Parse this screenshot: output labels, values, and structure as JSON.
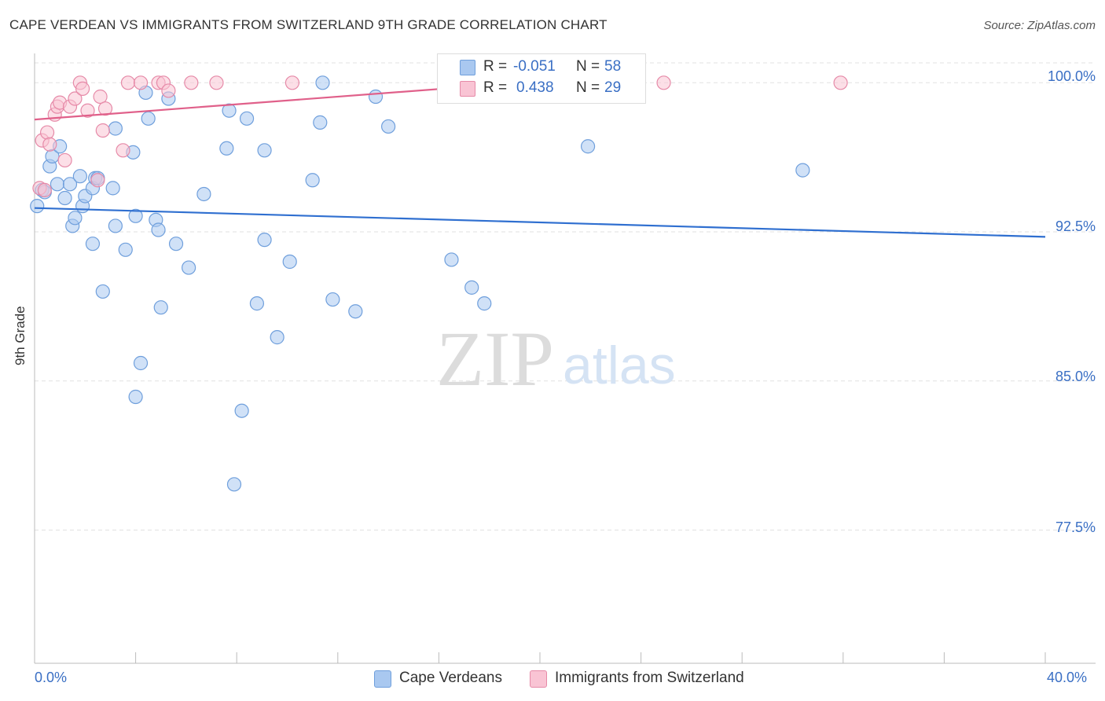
{
  "title": "CAPE VERDEAN VS IMMIGRANTS FROM SWITZERLAND 9TH GRADE CORRELATION CHART",
  "source": "Source: ZipAtlas.com",
  "watermark": {
    "zip": "ZIP",
    "atlas": "atlas"
  },
  "legend": {
    "rows": [
      {
        "r_label": "R =",
        "r_value": "-0.051",
        "n_label": "N =",
        "n_value": "58",
        "color": "#a9c8f0",
        "border": "#6f9fdc"
      },
      {
        "r_label": "R =",
        "r_value": "0.438",
        "n_label": "N =",
        "n_value": "29",
        "color": "#f9c4d4",
        "border": "#e68aa8"
      }
    ]
  },
  "bottom_legend": {
    "items": [
      {
        "label": "Cape Verdeans",
        "color": "#a9c8f0",
        "border": "#6f9fdc"
      },
      {
        "label": "Immigrants from Switzerland",
        "color": "#f9c4d4",
        "border": "#e68aa8"
      }
    ]
  },
  "y_tick_labels": [
    "100.0%",
    "92.5%",
    "85.0%",
    "77.5%"
  ],
  "x_tick_labels": [
    "0.0%",
    "40.0%"
  ],
  "chart_data": {
    "type": "scatter",
    "title": "CAPE VERDEAN VS IMMIGRANTS FROM SWITZERLAND 9TH GRADE CORRELATION CHART",
    "xlabel": "",
    "ylabel": "9th Grade",
    "xlim": [
      0,
      40
    ],
    "ylim": [
      70.8,
      101.0
    ],
    "y_ticks": [
      100.0,
      92.5,
      85.0,
      77.5
    ],
    "x_ticks": [
      0.0,
      40.0
    ],
    "grid": true,
    "series": [
      {
        "name": "Cape Verdeans",
        "color": "#6f9fdc",
        "fill": "#a9c8f0",
        "R": -0.051,
        "N": 58,
        "trend": {
          "x": [
            0,
            40
          ],
          "y": [
            93.7,
            92.25
          ]
        },
        "points": [
          [
            0.1,
            93.8
          ],
          [
            0.3,
            94.6
          ],
          [
            0.4,
            94.5
          ],
          [
            0.6,
            95.8
          ],
          [
            0.7,
            96.3
          ],
          [
            0.9,
            94.9
          ],
          [
            1.0,
            96.8
          ],
          [
            1.2,
            94.2
          ],
          [
            1.4,
            94.9
          ],
          [
            1.5,
            92.8
          ],
          [
            1.6,
            93.2
          ],
          [
            1.8,
            95.3
          ],
          [
            1.9,
            93.8
          ],
          [
            2.0,
            94.3
          ],
          [
            2.3,
            94.7
          ],
          [
            2.4,
            95.2
          ],
          [
            2.5,
            95.2
          ],
          [
            2.3,
            91.9
          ],
          [
            2.7,
            89.5
          ],
          [
            3.1,
            94.7
          ],
          [
            3.2,
            97.7
          ],
          [
            3.2,
            92.8
          ],
          [
            3.6,
            91.6
          ],
          [
            3.9,
            96.5
          ],
          [
            4.0,
            84.2
          ],
          [
            4.0,
            93.3
          ],
          [
            4.2,
            85.9
          ],
          [
            4.4,
            99.5
          ],
          [
            4.5,
            98.2
          ],
          [
            4.8,
            93.1
          ],
          [
            4.9,
            92.6
          ],
          [
            5.0,
            88.7
          ],
          [
            5.3,
            99.2
          ],
          [
            5.6,
            91.9
          ],
          [
            6.1,
            90.7
          ],
          [
            6.7,
            94.4
          ],
          [
            7.6,
            96.7
          ],
          [
            7.7,
            98.6
          ],
          [
            7.9,
            79.8
          ],
          [
            8.2,
            83.5
          ],
          [
            8.4,
            98.2
          ],
          [
            8.8,
            88.9
          ],
          [
            9.1,
            96.6
          ],
          [
            9.1,
            92.1
          ],
          [
            9.6,
            87.2
          ],
          [
            10.1,
            91.0
          ],
          [
            11.0,
            95.1
          ],
          [
            11.3,
            98.0
          ],
          [
            11.4,
            100.0
          ],
          [
            11.8,
            89.1
          ],
          [
            12.7,
            88.5
          ],
          [
            13.5,
            99.3
          ],
          [
            14.0,
            97.8
          ],
          [
            16.5,
            91.1
          ],
          [
            17.3,
            89.7
          ],
          [
            17.8,
            88.9
          ],
          [
            21.9,
            96.8
          ],
          [
            30.4,
            95.6
          ]
        ]
      },
      {
        "name": "Immigrants from Switzerland",
        "color": "#e68aa8",
        "fill": "#f9c4d4",
        "R": 0.438,
        "N": 29,
        "trend": {
          "x": [
            0,
            19.3
          ],
          "y": [
            98.15,
            100.0
          ]
        },
        "points": [
          [
            0.2,
            94.7
          ],
          [
            0.3,
            97.1
          ],
          [
            0.4,
            94.6
          ],
          [
            0.5,
            97.5
          ],
          [
            0.6,
            96.9
          ],
          [
            0.8,
            98.4
          ],
          [
            0.9,
            98.8
          ],
          [
            1.0,
            99.0
          ],
          [
            1.2,
            96.1
          ],
          [
            1.4,
            98.8
          ],
          [
            1.6,
            99.2
          ],
          [
            1.8,
            100.0
          ],
          [
            1.9,
            99.7
          ],
          [
            2.1,
            98.6
          ],
          [
            2.5,
            95.1
          ],
          [
            2.6,
            99.3
          ],
          [
            2.7,
            97.6
          ],
          [
            2.8,
            98.7
          ],
          [
            3.5,
            96.6
          ],
          [
            3.7,
            100.0
          ],
          [
            4.2,
            100.0
          ],
          [
            4.9,
            100.0
          ],
          [
            5.1,
            100.0
          ],
          [
            5.3,
            99.6
          ],
          [
            6.2,
            100.0
          ],
          [
            7.2,
            100.0
          ],
          [
            10.2,
            100.0
          ],
          [
            24.9,
            100.0
          ],
          [
            31.9,
            100.0
          ]
        ]
      }
    ]
  }
}
